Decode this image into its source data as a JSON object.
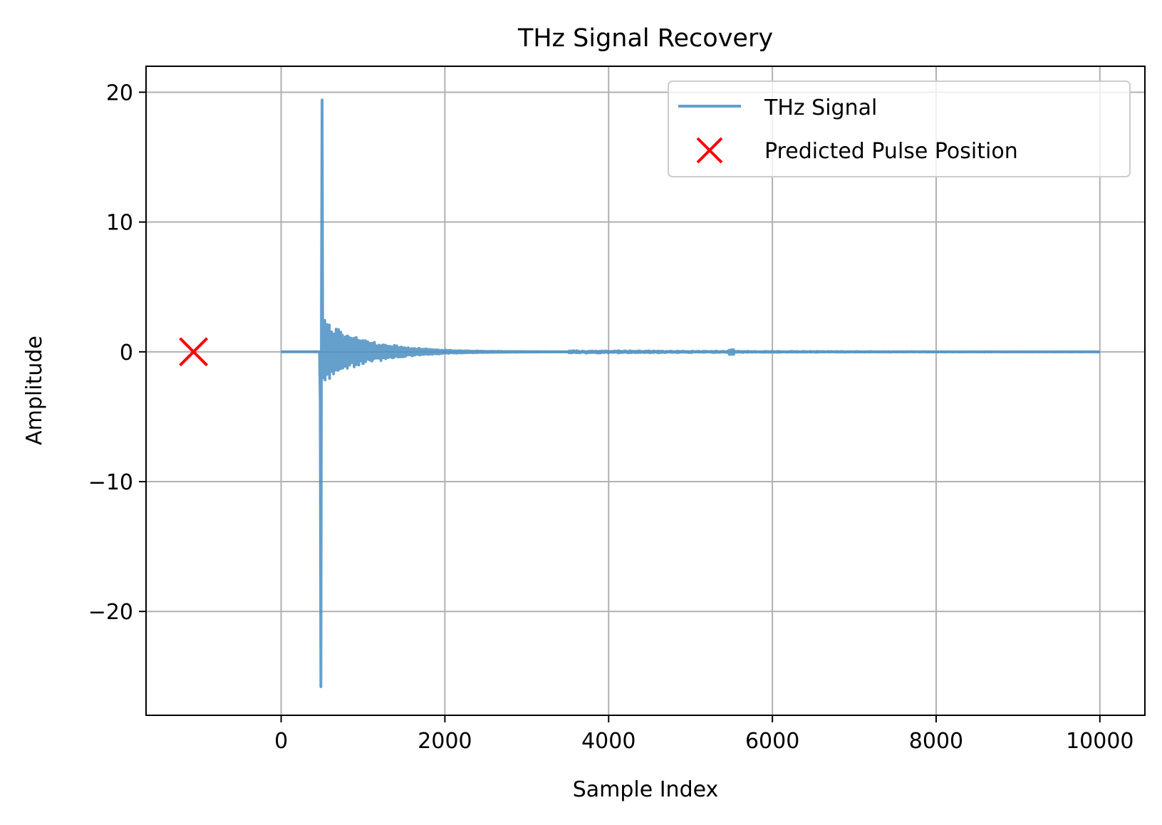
{
  "chart_data": {
    "type": "line",
    "title": "THz Signal Recovery",
    "xlabel": "Sample Index",
    "ylabel": "Amplitude",
    "xlim": [
      -1650,
      10550
    ],
    "ylim": [
      -28,
      22
    ],
    "x_ticks": [
      0,
      2000,
      4000,
      6000,
      8000,
      10000
    ],
    "x_tick_labels": [
      "0",
      "2000",
      "4000",
      "6000",
      "8000",
      "10000"
    ],
    "y_ticks": [
      -20,
      -10,
      0,
      10,
      20
    ],
    "y_tick_labels": [
      "−20",
      "−10",
      "0",
      "10",
      "20"
    ],
    "grid": true,
    "legend_position": "top-right",
    "series": [
      {
        "name": "THz Signal",
        "kind": "line",
        "color": "#4a8ec2",
        "opacity": 0.85,
        "x_range": [
          0,
          10000
        ],
        "pulse": {
          "peak_x": 500,
          "peak_y": 19.4,
          "trough_x": 485,
          "trough_y": -25.8,
          "ringing_start_x": 520,
          "ringing_initial_amplitude": 2.6,
          "ringing_decay_to_x": 3500
        },
        "secondary_echo": {
          "x": 5500,
          "amplitude": 0.25
        },
        "baseline": 0
      },
      {
        "name": "Predicted Pulse Position",
        "kind": "scatter",
        "marker": "x",
        "color": "#ff0000",
        "points": [
          {
            "x": -1070,
            "y": 0
          }
        ]
      }
    ]
  }
}
